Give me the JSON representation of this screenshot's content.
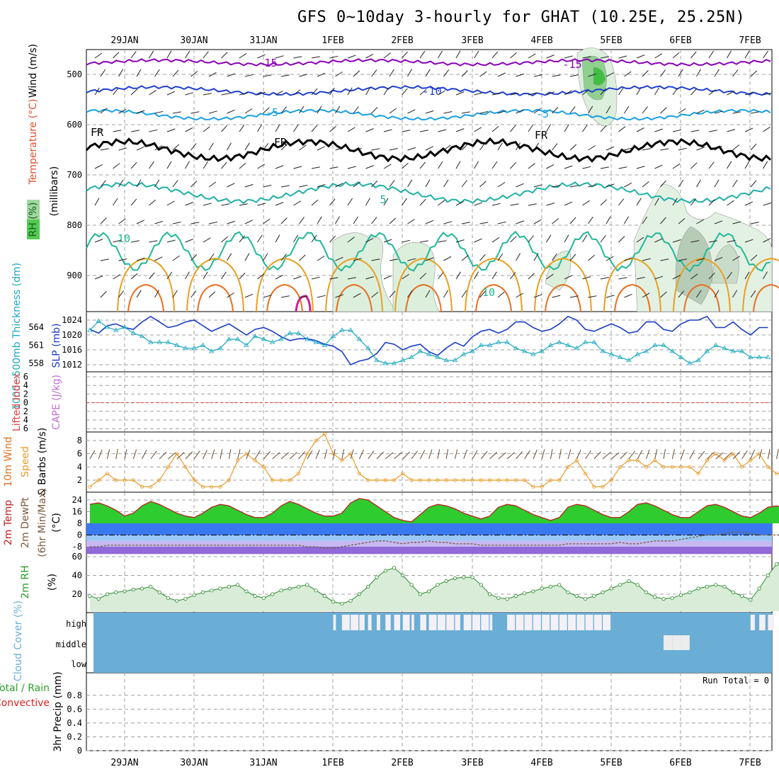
{
  "header": {
    "title": "GFS 0~10day 3-hourly for GHAT (10.25E, 25.25N)"
  },
  "dates": [
    "29JAN",
    "30JAN",
    "31JAN",
    "1FEB",
    "2FEB",
    "3FEB",
    "4FEB",
    "5FEB",
    "6FEB",
    "7FEB"
  ],
  "panels": {
    "upper": {
      "legend": {
        "rh": "RH (%)",
        "temp": "Temperature (°C)",
        "wind": "Wind (m/s)",
        "units": "(millibars)"
      },
      "yticks": [
        "500",
        "600",
        "700",
        "800",
        "900"
      ],
      "contour_labels": [
        {
          "text": "-15",
          "color": "#8a00b8"
        },
        {
          "text": "-15",
          "color": "#8a00b8"
        },
        {
          "text": "-10",
          "color": "#1f3fd0"
        },
        {
          "text": "-5",
          "color": "#1aa0e0"
        },
        {
          "text": "-5",
          "color": "#1aa0e0"
        },
        {
          "text": "FR",
          "color": "#000000"
        },
        {
          "text": "FR",
          "color": "#000000"
        },
        {
          "text": "FR",
          "color": "#000000"
        },
        {
          "text": "5",
          "color": "#20b0a8"
        },
        {
          "text": "10",
          "color": "#20b898"
        },
        {
          "text": "10",
          "color": "#20b898"
        }
      ]
    },
    "slp": {
      "label_thk": "1000~500mb Thickness (dm)",
      "label_slp": "SLP (mb)",
      "yticks_left": [
        "564",
        "561",
        "558"
      ],
      "yticks_right": [
        "1024",
        "1020",
        "1016",
        "1012"
      ]
    },
    "cape": {
      "label_li": "Lifted Index",
      "label_cape": "CAPE (J/kg)",
      "yticks": [
        "6",
        "4",
        "2",
        "0",
        "2",
        "4",
        "6"
      ]
    },
    "wind10": {
      "label": "10m Wind Speed & Barbs (m/s)",
      "yticks": [
        "8",
        "6",
        "4",
        "2"
      ]
    },
    "temp2m": {
      "label": "2m Temp 2m DewPt (6hr Min/Max) (°C)",
      "yticks": [
        "24",
        "16",
        "8",
        "0",
        "-8"
      ]
    },
    "rh2m": {
      "label": "2m RH (%)",
      "yticks": [
        "60",
        "40",
        "20"
      ]
    },
    "cloud": {
      "label": "Cloud Cover (%)",
      "levels": [
        "high",
        "middle",
        "low"
      ]
    },
    "precip": {
      "label_total": "Total / Rain",
      "label_conv": "Convective",
      "label_axis": "3hr Precip (mm)",
      "yticks": [
        "0.8",
        "0.6",
        "0.4",
        "0.2",
        "0"
      ],
      "run_total": "Run Total = 0"
    }
  },
  "chart_data": [
    {
      "type": "line",
      "title": "SLP and 1000-500mb Thickness",
      "x": [
        "28JAN12",
        "28JAN15",
        "28JAN18",
        "28JAN21",
        "29JAN00",
        "29JAN03",
        "29JAN06",
        "29JAN09",
        "29JAN12",
        "29JAN15",
        "29JAN18",
        "29JAN21",
        "30JAN00",
        "30JAN03",
        "30JAN06",
        "30JAN09",
        "30JAN12",
        "30JAN15",
        "30JAN18",
        "30JAN21",
        "31JAN00",
        "31JAN03",
        "31JAN06",
        "31JAN09",
        "31JAN12",
        "31JAN15",
        "31JAN18",
        "31JAN21",
        "1FEB00",
        "1FEB03",
        "1FEB06",
        "1FEB09",
        "1FEB12",
        "1FEB15",
        "1FEB18",
        "1FEB21",
        "2FEB00",
        "2FEB03",
        "2FEB06",
        "2FEB09",
        "2FEB12",
        "2FEB15",
        "2FEB18",
        "2FEB21",
        "3FEB00",
        "3FEB03",
        "3FEB06",
        "3FEB09",
        "3FEB12",
        "3FEB15",
        "3FEB18",
        "3FEB21",
        "4FEB00",
        "4FEB03",
        "4FEB06",
        "4FEB09",
        "4FEB12",
        "4FEB15",
        "4FEB18",
        "4FEB21",
        "5FEB00",
        "5FEB03",
        "5FEB06",
        "5FEB09",
        "5FEB12",
        "5FEB15",
        "5FEB18",
        "5FEB21",
        "6FEB00",
        "6FEB03",
        "6FEB06",
        "6FEB09",
        "6FEB12",
        "6FEB15",
        "6FEB18",
        "6FEB21",
        "7FEB00",
        "7FEB03",
        "7FEB06"
      ],
      "series": [
        {
          "name": "SLP (mb)",
          "color": "#1a3cc8",
          "axis": "right",
          "values": [
            1021.5,
            1020.5,
            1022.5,
            1023,
            1022,
            1021.5,
            1023.5,
            1025,
            1023.5,
            1022,
            1022.5,
            1023.5,
            1024,
            1022.5,
            1021,
            1022,
            1023,
            1021.5,
            1020,
            1021.5,
            1022,
            1021,
            1019.5,
            1018.5,
            1019,
            1019,
            1018.5,
            1017.5,
            1017,
            1015.5,
            1012,
            1013,
            1013.5,
            1015,
            1018,
            1017.5,
            1016,
            1017,
            1017.5,
            1015.5,
            1014.5,
            1016.5,
            1018,
            1017,
            1019.5,
            1021,
            1021.5,
            1020.5,
            1021.5,
            1023.5,
            1023.5,
            1022,
            1021,
            1021.5,
            1023,
            1025,
            1024,
            1021.5,
            1021,
            1022,
            1023,
            1022,
            1020.5,
            1021,
            1023.5,
            1023.5,
            1021.5,
            1021,
            1023,
            1024,
            1024,
            1025,
            1022,
            1022,
            1023.5,
            1021.5,
            1020,
            1022,
            1022
          ]
        },
        {
          "name": "1000~500mb Thickness (dm)",
          "color": "#1aa8c0",
          "axis": "left",
          "values": [
            563.5,
            565,
            564,
            563.5,
            564,
            563,
            562.5,
            561.5,
            561.5,
            561.5,
            561,
            560.5,
            560.5,
            561,
            560,
            560.5,
            562,
            562,
            561,
            562.5,
            562,
            561.5,
            562,
            563,
            563,
            562,
            561.5,
            561,
            562.5,
            563.5,
            563.5,
            562,
            560.5,
            558.5,
            558,
            558,
            558.5,
            559,
            560,
            559.5,
            559,
            558.5,
            558.5,
            559.5,
            560,
            561,
            561,
            561.5,
            561.5,
            560.5,
            560,
            559.5,
            560,
            561,
            561.5,
            561,
            560.5,
            561.5,
            561.5,
            560,
            559.5,
            559,
            558.5,
            559.5,
            560,
            561,
            561,
            560,
            559,
            558,
            558.5,
            560,
            561,
            560.5,
            560,
            560,
            559,
            559,
            559
          ]
        }
      ],
      "ylim_left": [
        557,
        566
      ],
      "ylim_right": [
        1010,
        1026
      ]
    },
    {
      "type": "line",
      "title": "10m Wind Speed",
      "series": [
        {
          "name": "10m Wind Speed (m/s)",
          "color": "#e89a28",
          "values": [
            1,
            2,
            3,
            2,
            2,
            2,
            1,
            1,
            2,
            4,
            6,
            4,
            2,
            1,
            1,
            1,
            2,
            5,
            6,
            5,
            4,
            2,
            2,
            2,
            3,
            6,
            8,
            9,
            6,
            5,
            6,
            3,
            2,
            2,
            2,
            2,
            3,
            2,
            2,
            2,
            2,
            2,
            2,
            2,
            2,
            2,
            2,
            2,
            2,
            2,
            2,
            1,
            1,
            2,
            2,
            4,
            5,
            3,
            1,
            1,
            2,
            4,
            5,
            5,
            4,
            5,
            4,
            4,
            4,
            4,
            3,
            5,
            6,
            5,
            6,
            4,
            5,
            6,
            4,
            3,
            3,
            3
          ]
        }
      ],
      "ylim": [
        1,
        9
      ]
    },
    {
      "type": "area",
      "title": "2m Temperature",
      "series": [
        {
          "name": "2m Temp (°C)",
          "color": "#b82020",
          "values": [
            21,
            22,
            20,
            17,
            13,
            15,
            20,
            23,
            21,
            18,
            15,
            13,
            12,
            15,
            19,
            21,
            20,
            17,
            14,
            12,
            12,
            15,
            20,
            23,
            21,
            18,
            15,
            13,
            13,
            15,
            22,
            25,
            24,
            20,
            16,
            12,
            10,
            9,
            14,
            19,
            21,
            20,
            18,
            15,
            13,
            11,
            13,
            19,
            21,
            20,
            17,
            14,
            12,
            10,
            12,
            19,
            21,
            20,
            17,
            14,
            12,
            12,
            16,
            21,
            22,
            20,
            17,
            14,
            12,
            12,
            16,
            20,
            21,
            19,
            16,
            13,
            12,
            15,
            19,
            20,
            18,
            15,
            12,
            10,
            10
          ]
        },
        {
          "name": "2m DewPt (°C)",
          "color": "#7a5a40",
          "values": [
            -8,
            -8,
            -7,
            -7,
            -7,
            -7,
            -7,
            -7,
            -7,
            -7,
            -7,
            -7,
            -7,
            -7,
            -7,
            -7,
            -7,
            -7,
            -7,
            -7,
            -7,
            -7,
            -7,
            -7,
            -7,
            -8,
            -8,
            -9,
            -9,
            -8,
            -7,
            -6,
            -5,
            -4,
            -4,
            -5,
            -6,
            -5,
            -5,
            -4,
            -5,
            -5,
            -6,
            -6,
            -6,
            -7,
            -7,
            -7,
            -7,
            -7,
            -7,
            -7,
            -7,
            -7,
            -7,
            -6,
            -6,
            -6,
            -6,
            -6,
            -6,
            -5,
            -6,
            -6,
            -5,
            -4,
            -4,
            -4,
            -3,
            -2,
            -1,
            0,
            0,
            1,
            2,
            2,
            1,
            0,
            0,
            0,
            0,
            -1,
            -1,
            -1,
            -1
          ]
        }
      ],
      "ylim": [
        -13,
        29
      ]
    },
    {
      "type": "area",
      "title": "2m RH",
      "series": [
        {
          "name": "2m RH (%)",
          "color": "#3a9a3a",
          "values": [
            18,
            15,
            20,
            22,
            23,
            25,
            26,
            28,
            22,
            16,
            13,
            15,
            19,
            22,
            24,
            26,
            28,
            30,
            23,
            18,
            16,
            20,
            24,
            26,
            28,
            30,
            24,
            18,
            12,
            10,
            13,
            20,
            28,
            38,
            45,
            48,
            40,
            30,
            20,
            23,
            30,
            34,
            37,
            38,
            38,
            30,
            20,
            16,
            15,
            18,
            21,
            23,
            26,
            28,
            30,
            22,
            18,
            15,
            18,
            22,
            26,
            30,
            34,
            30,
            22,
            17,
            15,
            16,
            19,
            22,
            26,
            28,
            30,
            28,
            22,
            18,
            14,
            26,
            40,
            52,
            58,
            60,
            48,
            35,
            25,
            22,
            30,
            36,
            40,
            44,
            46,
            47,
            48,
            49
          ]
        }
      ],
      "ylim": [
        5,
        62
      ]
    },
    {
      "type": "bar",
      "title": "Cloud Cover",
      "series": [
        {
          "name": "high",
          "values": [
            0,
            0,
            0,
            0,
            0,
            0,
            0,
            0,
            0,
            0,
            0,
            0,
            0,
            0,
            0,
            0,
            0,
            0,
            0,
            0,
            0,
            0,
            0,
            0,
            0,
            0,
            0,
            0,
            30,
            90,
            90,
            60,
            40,
            40,
            60,
            70,
            80,
            30,
            70,
            90,
            90,
            90,
            60,
            90,
            90,
            90,
            30,
            0,
            90,
            90,
            90,
            90,
            90,
            90,
            90,
            90,
            90,
            90,
            90,
            90,
            0,
            0,
            0,
            0,
            0,
            0,
            0,
            0,
            0,
            0,
            0,
            0,
            0,
            0,
            0,
            0,
            50,
            70,
            70
          ]
        },
        {
          "name": "middle",
          "values": [
            0,
            0,
            0,
            0,
            0,
            0,
            0,
            0,
            0,
            0,
            0,
            0,
            0,
            0,
            0,
            0,
            0,
            0,
            0,
            0,
            0,
            0,
            0,
            0,
            0,
            0,
            0,
            0,
            0,
            0,
            0,
            0,
            0,
            0,
            0,
            0,
            0,
            0,
            0,
            0,
            0,
            0,
            0,
            0,
            0,
            0,
            0,
            0,
            0,
            0,
            0,
            0,
            0,
            0,
            0,
            0,
            0,
            0,
            0,
            0,
            0,
            0,
            0,
            0,
            0,
            0,
            80,
            90,
            70,
            0,
            0,
            0,
            0,
            0,
            0,
            0,
            0,
            0,
            0
          ]
        },
        {
          "name": "low",
          "values": [
            0,
            0,
            0,
            0,
            0,
            0,
            0,
            0,
            0,
            0,
            0,
            0,
            0,
            0,
            0,
            0,
            0,
            0,
            0,
            0,
            0,
            0,
            0,
            0,
            0,
            0,
            0,
            0,
            0,
            0,
            0,
            0,
            0,
            0,
            0,
            0,
            0,
            0,
            0,
            0,
            0,
            0,
            0,
            0,
            0,
            0,
            0,
            0,
            0,
            0,
            0,
            0,
            0,
            0,
            0,
            0,
            0,
            0,
            0,
            0,
            0,
            0,
            0,
            0,
            0,
            0,
            0,
            0,
            0,
            0,
            0,
            0,
            0,
            0,
            0,
            0,
            0,
            0,
            0
          ]
        }
      ],
      "ylim": [
        0,
        100
      ]
    },
    {
      "type": "bar",
      "title": "3hr Precip",
      "series": [
        {
          "name": "3hr Precip (mm)",
          "values": []
        }
      ],
      "ylim": [
        0,
        0.9
      ]
    }
  ],
  "colors": {
    "frame": "#000000",
    "grid": "#a0a0a0",
    "slp": "#1a3cc8",
    "thickness": "#1aa8c0",
    "wind_speed": "#e89a28",
    "temp_warm": "#2ecc2e",
    "temp_cold_band": "#3a78f0",
    "dewpoint": "#7a5a40",
    "rh_fill": "#59c259",
    "cloud": "#6aaed6",
    "lifted_index_zero": "#e04040"
  }
}
